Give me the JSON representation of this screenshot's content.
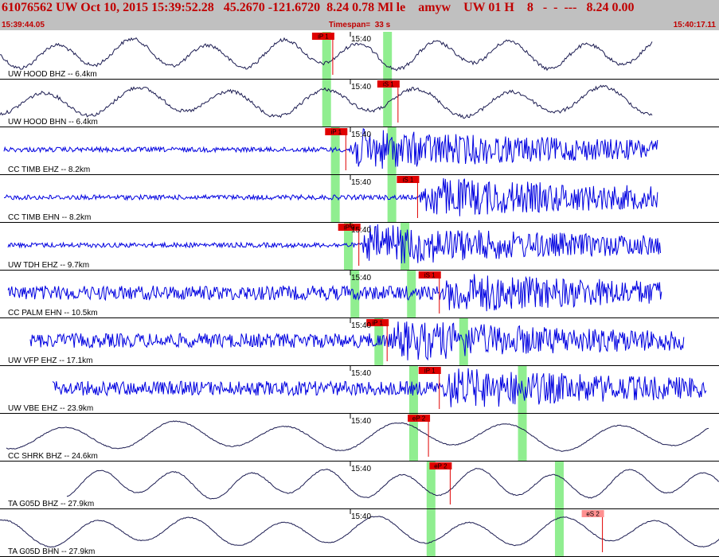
{
  "header": {
    "event_line": "61076562 UW Oct 10, 2015 15:39:52.28   45.2670 -121.6720  8.24 0.78 Ml le    amyw    UW 01 H    8   -  -  ---   8.24 0.00",
    "start_time": "15:39:44.05",
    "timespan": "Timespan=  33 s",
    "end_time": "15:40:17.11"
  },
  "time_mark_label": "15:40",
  "colors": {
    "header_bg": "#c0c0c0",
    "header_text": "#c00000",
    "trace_short_period": "#0000e0",
    "trace_broadband": "#1a1a50",
    "pick_box": "#e00000",
    "pick_box_pale": "#ff9090",
    "pick_line": "#e00000",
    "window_band": "#90ee90",
    "separator": "#000000"
  },
  "traces": [
    {
      "label": "UW HOOD BHZ -- 6.4km",
      "type": "lp",
      "pick": "iP 1",
      "pick_t": 15.3,
      "bands": [
        15.0,
        17.8
      ]
    },
    {
      "label": "UW HOOD BHN -- 6.4km",
      "type": "lp",
      "pick": "iS 1",
      "pick_t": 18.3,
      "bands": [
        15.0,
        17.8
      ]
    },
    {
      "label": "CC TIMB EHZ -- 8.2km",
      "type": "sp",
      "pick": "iP 1",
      "pick_t": 15.9,
      "bands": [
        15.4,
        18.0
      ]
    },
    {
      "label": "CC TIMB EHN -- 8.2km",
      "type": "sp",
      "pick": "iS 1",
      "pick_t": 19.2,
      "bands": [
        15.4,
        18.0
      ]
    },
    {
      "label": "UW TDH EHZ -- 9.7km",
      "type": "sp",
      "pick": "iP 0",
      "pick_t": 16.5,
      "bands": [
        16.0,
        18.6
      ]
    },
    {
      "label": "CC PALM EHN -- 10.5km",
      "type": "sp",
      "pick": "iS 1",
      "pick_t": 20.2,
      "bands": [
        16.3,
        18.9
      ]
    },
    {
      "label": "UW VFP EHZ -- 17.1km",
      "type": "sp",
      "pick": "iP 1",
      "pick_t": 17.8,
      "bands": [
        17.4,
        21.3
      ]
    },
    {
      "label": "UW VBE EHZ -- 23.9km",
      "type": "sp",
      "pick": "iP 1",
      "pick_t": 20.2,
      "bands": [
        19.0,
        24.0
      ]
    },
    {
      "label": "CC SHRK BHZ -- 24.6km",
      "type": "lp",
      "pick": "eP 2",
      "pick_t": 19.7,
      "bands": [
        19.0,
        24.0
      ]
    },
    {
      "label": "TA G05D BHZ -- 27.9km",
      "type": "lp",
      "pick": "eP 2",
      "pick_t": 20.7,
      "bands": [
        19.8,
        25.7
      ]
    },
    {
      "label": "TA G05D BHN -- 27.9km",
      "type": "lp",
      "pick": "eS 2",
      "pick_t": 27.7,
      "bands": [
        19.8,
        25.7
      ],
      "pale": true
    }
  ]
}
